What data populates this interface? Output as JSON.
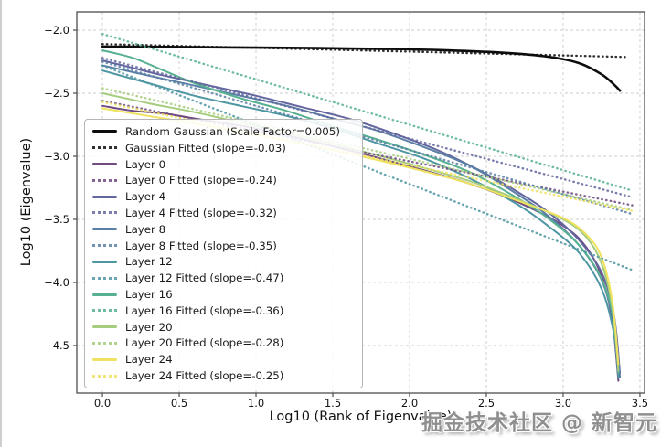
{
  "figure": {
    "xlabel": "Log10 (Rank of Eigenvalue)",
    "ylabel": "Log10 (Eigenvalue)",
    "watermark": "掘金技术社区 @ 新智元"
  },
  "chart_data": {
    "type": "line",
    "title": "",
    "xlabel": "Log10 (Rank of Eigenvalue)",
    "ylabel": "Log10 (Eigenvalue)",
    "xlim": [
      -0.167,
      3.53
    ],
    "ylim": [
      -4.877,
      -1.855
    ],
    "xticks": [
      0.0,
      0.5,
      1.0,
      1.5,
      2.0,
      2.5,
      3.0,
      3.5
    ],
    "yticks": [
      -2.0,
      -2.5,
      -3.0,
      -3.5,
      -4.0,
      -4.5
    ],
    "grid": true,
    "legend_position": "inside center-left",
    "series": [
      {
        "name": "Random Gaussian (Scale Factor=0.005)",
        "style": "solid",
        "color": "#0d0d0d",
        "width": 2.6,
        "points": [
          [
            0,
            -2.13
          ],
          [
            0.3,
            -2.132
          ],
          [
            0.6,
            -2.135
          ],
          [
            1.0,
            -2.138
          ],
          [
            1.4,
            -2.142
          ],
          [
            1.8,
            -2.148
          ],
          [
            2.2,
            -2.158
          ],
          [
            2.6,
            -2.178
          ],
          [
            2.9,
            -2.21
          ],
          [
            3.1,
            -2.26
          ],
          [
            3.25,
            -2.35
          ],
          [
            3.33,
            -2.43
          ],
          [
            3.37,
            -2.48
          ]
        ]
      },
      {
        "name": "Gaussian Fitted (slope=-0.03)",
        "style": "dotted",
        "color": "#0d0d0d",
        "slope": -0.03,
        "intercept": -2.11,
        "x_range": [
          0,
          3.42
        ]
      },
      {
        "name": "Layer 0",
        "style": "solid",
        "color": "#6f4b80",
        "width": 2,
        "points": [
          [
            0,
            -2.6
          ],
          [
            0.2,
            -2.64
          ],
          [
            0.4,
            -2.66
          ],
          [
            0.6,
            -2.7
          ],
          [
            1.0,
            -2.78
          ],
          [
            1.5,
            -2.92
          ],
          [
            2.0,
            -3.08
          ],
          [
            2.4,
            -3.22
          ],
          [
            2.7,
            -3.36
          ],
          [
            3.0,
            -3.55
          ],
          [
            3.15,
            -3.72
          ],
          [
            3.25,
            -3.95
          ],
          [
            3.32,
            -4.3
          ],
          [
            3.36,
            -4.78
          ]
        ]
      },
      {
        "name": "Layer 0 Fitted (slope=-0.24)",
        "style": "dotted",
        "color": "#6f4b80",
        "slope": -0.24,
        "intercept": -2.56,
        "x_range": [
          0,
          3.45
        ]
      },
      {
        "name": "Layer 4",
        "style": "solid",
        "color": "#64679f",
        "width": 2,
        "points": [
          [
            0,
            -2.24
          ],
          [
            0.2,
            -2.3
          ],
          [
            0.4,
            -2.36
          ],
          [
            0.7,
            -2.44
          ],
          [
            1.0,
            -2.52
          ],
          [
            1.3,
            -2.61
          ],
          [
            1.6,
            -2.7
          ],
          [
            1.9,
            -2.82
          ],
          [
            2.2,
            -2.96
          ],
          [
            2.5,
            -3.14
          ],
          [
            2.7,
            -3.28
          ],
          [
            2.9,
            -3.44
          ],
          [
            3.1,
            -3.66
          ],
          [
            3.25,
            -3.92
          ],
          [
            3.33,
            -4.25
          ],
          [
            3.37,
            -4.72
          ]
        ]
      },
      {
        "name": "Layer 4 Fitted (slope=-0.32)",
        "style": "dotted",
        "color": "#64679f",
        "slope": -0.32,
        "intercept": -2.22,
        "x_range": [
          0,
          3.45
        ]
      },
      {
        "name": "Layer 8",
        "style": "solid",
        "color": "#5a7fa5",
        "width": 2,
        "points": [
          [
            0,
            -2.28
          ],
          [
            0.3,
            -2.36
          ],
          [
            0.6,
            -2.44
          ],
          [
            0.9,
            -2.52
          ],
          [
            1.2,
            -2.6
          ],
          [
            1.5,
            -2.7
          ],
          [
            1.8,
            -2.8
          ],
          [
            2.1,
            -2.93
          ],
          [
            2.4,
            -3.08
          ],
          [
            2.7,
            -3.3
          ],
          [
            2.9,
            -3.47
          ],
          [
            3.1,
            -3.7
          ],
          [
            3.25,
            -3.98
          ],
          [
            3.33,
            -4.33
          ],
          [
            3.37,
            -4.75
          ]
        ]
      },
      {
        "name": "Layer 8 Fitted (slope=-0.35)",
        "style": "dotted",
        "color": "#5a7fa5",
        "slope": -0.35,
        "intercept": -2.25,
        "x_range": [
          0,
          3.45
        ]
      },
      {
        "name": "Layer 12",
        "style": "solid",
        "color": "#4e96a3",
        "width": 2,
        "points": [
          [
            0,
            -2.32
          ],
          [
            0.3,
            -2.42
          ],
          [
            0.6,
            -2.52
          ],
          [
            0.9,
            -2.6
          ],
          [
            1.2,
            -2.68
          ],
          [
            1.5,
            -2.78
          ],
          [
            1.8,
            -2.9
          ],
          [
            2.1,
            -3.02
          ],
          [
            2.4,
            -3.18
          ],
          [
            2.7,
            -3.38
          ],
          [
            2.9,
            -3.55
          ],
          [
            3.1,
            -3.76
          ],
          [
            3.25,
            -4.05
          ],
          [
            3.33,
            -4.4
          ],
          [
            3.36,
            -4.75
          ]
        ]
      },
      {
        "name": "Layer 12 Fitted (slope=-0.47)",
        "style": "dotted",
        "color": "#4e96a3",
        "slope": -0.47,
        "intercept": -2.28,
        "x_range": [
          0,
          3.45
        ]
      },
      {
        "name": "Layer 16",
        "style": "solid",
        "color": "#57b191",
        "width": 2,
        "points": [
          [
            0,
            -2.16
          ],
          [
            0.2,
            -2.22
          ],
          [
            0.4,
            -2.32
          ],
          [
            0.6,
            -2.42
          ],
          [
            0.9,
            -2.54
          ],
          [
            1.2,
            -2.64
          ],
          [
            1.5,
            -2.76
          ],
          [
            1.8,
            -2.87
          ],
          [
            2.1,
            -2.99
          ],
          [
            2.4,
            -3.13
          ],
          [
            2.7,
            -3.33
          ],
          [
            2.9,
            -3.49
          ],
          [
            3.1,
            -3.7
          ],
          [
            3.25,
            -3.97
          ],
          [
            3.33,
            -4.3
          ],
          [
            3.36,
            -4.72
          ]
        ]
      },
      {
        "name": "Layer 16 Fitted (slope=-0.36)",
        "style": "dotted",
        "color": "#57b191",
        "slope": -0.36,
        "intercept": -2.03,
        "x_range": [
          0,
          3.45
        ]
      },
      {
        "name": "Layer 20",
        "style": "solid",
        "color": "#a6cd7d",
        "width": 2,
        "points": [
          [
            0,
            -2.5
          ],
          [
            0.3,
            -2.58
          ],
          [
            0.6,
            -2.65
          ],
          [
            1.0,
            -2.76
          ],
          [
            1.5,
            -2.9
          ],
          [
            2.0,
            -3.06
          ],
          [
            2.4,
            -3.2
          ],
          [
            2.7,
            -3.34
          ],
          [
            3.0,
            -3.5
          ],
          [
            3.15,
            -3.64
          ],
          [
            3.25,
            -3.85
          ],
          [
            3.32,
            -4.2
          ],
          [
            3.36,
            -4.7
          ]
        ]
      },
      {
        "name": "Layer 20 Fitted (slope=-0.28)",
        "style": "dotted",
        "color": "#a6cd7d",
        "slope": -0.28,
        "intercept": -2.46,
        "x_range": [
          0,
          3.45
        ]
      },
      {
        "name": "Layer 24",
        "style": "solid",
        "color": "#efe25e",
        "width": 2,
        "points": [
          [
            0,
            -2.62
          ],
          [
            0.3,
            -2.68
          ],
          [
            0.6,
            -2.74
          ],
          [
            1.0,
            -2.83
          ],
          [
            1.5,
            -2.95
          ],
          [
            2.0,
            -3.09
          ],
          [
            2.4,
            -3.22
          ],
          [
            2.7,
            -3.35
          ],
          [
            3.0,
            -3.49
          ],
          [
            3.15,
            -3.62
          ],
          [
            3.25,
            -3.8
          ],
          [
            3.32,
            -4.15
          ],
          [
            3.36,
            -4.65
          ]
        ]
      },
      {
        "name": "Layer 24 Fitted (slope=-0.25)",
        "style": "dotted",
        "color": "#efe25e",
        "slope": -0.25,
        "intercept": -2.57,
        "x_range": [
          0,
          3.45
        ]
      }
    ]
  }
}
